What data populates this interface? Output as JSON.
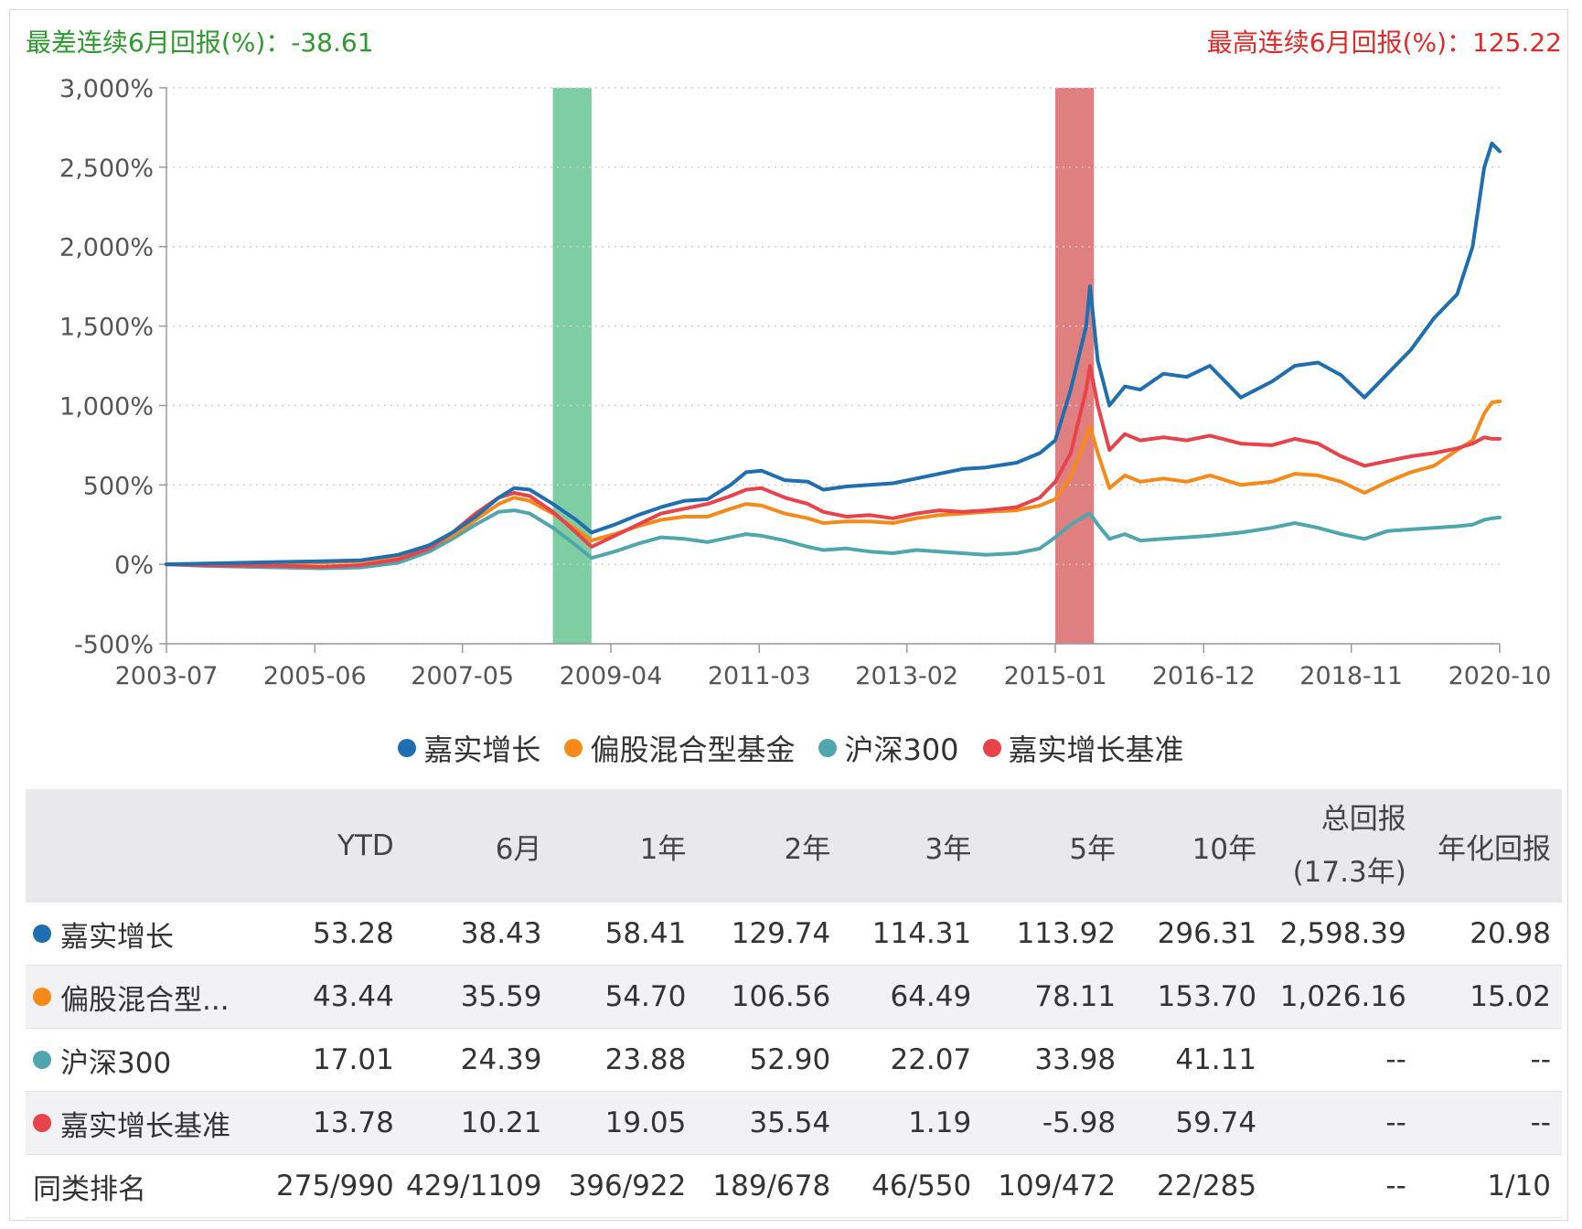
{
  "annotations": {
    "worst_6m": "最差连续6月回报(%)：-38.61",
    "best_6m": "最高连续6月回报(%)：125.22"
  },
  "colors": {
    "fund": "#1f6fb0",
    "peer": "#f58a18",
    "index": "#4fa6ad",
    "benchmark": "#e8434b",
    "worst_band": "#7fcda2",
    "best_band": "#df7f7f",
    "worst_text": "#2e9a2e",
    "best_text": "#e02a2a"
  },
  "chart_data": {
    "type": "line",
    "y_ticks": [
      "3,000%",
      "2,500%",
      "2,000%",
      "1,500%",
      "1,000%",
      "500%",
      "0%",
      "-500%"
    ],
    "y_tick_values": [
      3000,
      2500,
      2000,
      1500,
      1000,
      500,
      0,
      -500
    ],
    "ylim": [
      -500,
      3000
    ],
    "x_ticks": [
      "2003-07",
      "2005-06",
      "2007-05",
      "2009-04",
      "2011-03",
      "2013-02",
      "2015-01",
      "2016-12",
      "2018-11",
      "2020-10"
    ],
    "x_tick_values": [
      2003.5,
      2005.42,
      2007.33,
      2009.25,
      2011.17,
      2013.08,
      2015.0,
      2016.92,
      2018.83,
      2020.75
    ],
    "xlim": [
      2003.5,
      2020.75
    ],
    "grid": "dotted-horizontal",
    "legend_position": "bottom-center",
    "highlight_bands": [
      {
        "x0": 2008.5,
        "x1": 2009.0,
        "label": "worst"
      },
      {
        "x0": 2015.0,
        "x1": 2015.5,
        "label": "best"
      }
    ],
    "series": [
      {
        "name": "嘉实增长",
        "color_key": "fund",
        "points": [
          [
            2003.5,
            0
          ],
          [
            2004.0,
            5
          ],
          [
            2004.5,
            10
          ],
          [
            2005.0,
            15
          ],
          [
            2005.5,
            20
          ],
          [
            2006.0,
            25
          ],
          [
            2006.5,
            60
          ],
          [
            2006.9,
            120
          ],
          [
            2007.2,
            200
          ],
          [
            2007.5,
            300
          ],
          [
            2007.8,
            420
          ],
          [
            2008.0,
            480
          ],
          [
            2008.2,
            470
          ],
          [
            2008.5,
            380
          ],
          [
            2008.8,
            280
          ],
          [
            2009.0,
            200
          ],
          [
            2009.3,
            250
          ],
          [
            2009.6,
            310
          ],
          [
            2009.9,
            360
          ],
          [
            2010.2,
            400
          ],
          [
            2010.5,
            410
          ],
          [
            2010.8,
            500
          ],
          [
            2011.0,
            580
          ],
          [
            2011.2,
            590
          ],
          [
            2011.5,
            530
          ],
          [
            2011.8,
            520
          ],
          [
            2012.0,
            470
          ],
          [
            2012.3,
            490
          ],
          [
            2012.6,
            500
          ],
          [
            2012.9,
            510
          ],
          [
            2013.2,
            540
          ],
          [
            2013.5,
            570
          ],
          [
            2013.8,
            600
          ],
          [
            2014.1,
            610
          ],
          [
            2014.5,
            640
          ],
          [
            2014.8,
            700
          ],
          [
            2015.0,
            780
          ],
          [
            2015.2,
            1100
          ],
          [
            2015.4,
            1500
          ],
          [
            2015.45,
            1750
          ],
          [
            2015.55,
            1280
          ],
          [
            2015.7,
            1000
          ],
          [
            2015.9,
            1120
          ],
          [
            2016.1,
            1100
          ],
          [
            2016.4,
            1200
          ],
          [
            2016.7,
            1180
          ],
          [
            2017.0,
            1250
          ],
          [
            2017.4,
            1050
          ],
          [
            2017.8,
            1150
          ],
          [
            2018.1,
            1250
          ],
          [
            2018.4,
            1270
          ],
          [
            2018.7,
            1190
          ],
          [
            2019.0,
            1050
          ],
          [
            2019.3,
            1200
          ],
          [
            2019.6,
            1350
          ],
          [
            2019.9,
            1550
          ],
          [
            2020.2,
            1700
          ],
          [
            2020.4,
            2000
          ],
          [
            2020.55,
            2500
          ],
          [
            2020.65,
            2650
          ],
          [
            2020.75,
            2600
          ]
        ]
      },
      {
        "name": "偏股混合型基金",
        "color_key": "peer",
        "points": [
          [
            2003.5,
            0
          ],
          [
            2004.0,
            3
          ],
          [
            2004.5,
            6
          ],
          [
            2005.0,
            8
          ],
          [
            2005.5,
            12
          ],
          [
            2006.0,
            20
          ],
          [
            2006.5,
            50
          ],
          [
            2006.9,
            110
          ],
          [
            2007.2,
            180
          ],
          [
            2007.5,
            280
          ],
          [
            2007.8,
            380
          ],
          [
            2008.0,
            420
          ],
          [
            2008.2,
            400
          ],
          [
            2008.5,
            320
          ],
          [
            2008.8,
            220
          ],
          [
            2009.0,
            150
          ],
          [
            2009.3,
            190
          ],
          [
            2009.6,
            240
          ],
          [
            2009.9,
            280
          ],
          [
            2010.2,
            300
          ],
          [
            2010.5,
            300
          ],
          [
            2010.8,
            350
          ],
          [
            2011.0,
            380
          ],
          [
            2011.2,
            370
          ],
          [
            2011.5,
            320
          ],
          [
            2011.8,
            290
          ],
          [
            2012.0,
            260
          ],
          [
            2012.3,
            270
          ],
          [
            2012.6,
            270
          ],
          [
            2012.9,
            260
          ],
          [
            2013.2,
            290
          ],
          [
            2013.5,
            310
          ],
          [
            2013.8,
            320
          ],
          [
            2014.1,
            330
          ],
          [
            2014.5,
            340
          ],
          [
            2014.8,
            370
          ],
          [
            2015.0,
            410
          ],
          [
            2015.2,
            550
          ],
          [
            2015.4,
            800
          ],
          [
            2015.45,
            870
          ],
          [
            2015.55,
            700
          ],
          [
            2015.7,
            480
          ],
          [
            2015.9,
            560
          ],
          [
            2016.1,
            520
          ],
          [
            2016.4,
            540
          ],
          [
            2016.7,
            520
          ],
          [
            2017.0,
            560
          ],
          [
            2017.4,
            500
          ],
          [
            2017.8,
            520
          ],
          [
            2018.1,
            570
          ],
          [
            2018.4,
            560
          ],
          [
            2018.7,
            520
          ],
          [
            2019.0,
            450
          ],
          [
            2019.3,
            520
          ],
          [
            2019.6,
            580
          ],
          [
            2019.9,
            620
          ],
          [
            2020.2,
            720
          ],
          [
            2020.4,
            780
          ],
          [
            2020.55,
            950
          ],
          [
            2020.65,
            1020
          ],
          [
            2020.75,
            1026
          ]
        ]
      },
      {
        "name": "沪深300",
        "color_key": "index",
        "points": [
          [
            2003.5,
            0
          ],
          [
            2004.0,
            -10
          ],
          [
            2004.5,
            -15
          ],
          [
            2005.0,
            -20
          ],
          [
            2005.5,
            -25
          ],
          [
            2006.0,
            -20
          ],
          [
            2006.5,
            10
          ],
          [
            2006.9,
            80
          ],
          [
            2007.2,
            160
          ],
          [
            2007.5,
            250
          ],
          [
            2007.8,
            330
          ],
          [
            2008.0,
            340
          ],
          [
            2008.2,
            320
          ],
          [
            2008.5,
            230
          ],
          [
            2008.8,
            120
          ],
          [
            2009.0,
            40
          ],
          [
            2009.3,
            80
          ],
          [
            2009.6,
            130
          ],
          [
            2009.9,
            170
          ],
          [
            2010.2,
            160
          ],
          [
            2010.5,
            140
          ],
          [
            2010.8,
            170
          ],
          [
            2011.0,
            190
          ],
          [
            2011.2,
            180
          ],
          [
            2011.5,
            150
          ],
          [
            2011.8,
            110
          ],
          [
            2012.0,
            90
          ],
          [
            2012.3,
            100
          ],
          [
            2012.6,
            80
          ],
          [
            2012.9,
            70
          ],
          [
            2013.2,
            90
          ],
          [
            2013.5,
            80
          ],
          [
            2013.8,
            70
          ],
          [
            2014.1,
            60
          ],
          [
            2014.5,
            70
          ],
          [
            2014.8,
            100
          ],
          [
            2015.0,
            170
          ],
          [
            2015.2,
            250
          ],
          [
            2015.4,
            310
          ],
          [
            2015.45,
            320
          ],
          [
            2015.55,
            250
          ],
          [
            2015.7,
            160
          ],
          [
            2015.9,
            190
          ],
          [
            2016.1,
            150
          ],
          [
            2016.4,
            160
          ],
          [
            2016.7,
            170
          ],
          [
            2017.0,
            180
          ],
          [
            2017.4,
            200
          ],
          [
            2017.8,
            230
          ],
          [
            2018.1,
            260
          ],
          [
            2018.4,
            230
          ],
          [
            2018.7,
            190
          ],
          [
            2019.0,
            160
          ],
          [
            2019.3,
            210
          ],
          [
            2019.6,
            220
          ],
          [
            2019.9,
            230
          ],
          [
            2020.2,
            240
          ],
          [
            2020.4,
            250
          ],
          [
            2020.55,
            280
          ],
          [
            2020.65,
            290
          ],
          [
            2020.75,
            295
          ]
        ]
      },
      {
        "name": "嘉实增长基准",
        "color_key": "benchmark",
        "points": [
          [
            2003.5,
            0
          ],
          [
            2004.0,
            -5
          ],
          [
            2004.5,
            -8
          ],
          [
            2005.0,
            -10
          ],
          [
            2005.5,
            -15
          ],
          [
            2006.0,
            -5
          ],
          [
            2006.5,
            30
          ],
          [
            2006.9,
            100
          ],
          [
            2007.2,
            200
          ],
          [
            2007.5,
            320
          ],
          [
            2007.8,
            420
          ],
          [
            2008.0,
            450
          ],
          [
            2008.2,
            430
          ],
          [
            2008.5,
            330
          ],
          [
            2008.8,
            200
          ],
          [
            2009.0,
            110
          ],
          [
            2009.3,
            180
          ],
          [
            2009.6,
            250
          ],
          [
            2009.9,
            320
          ],
          [
            2010.2,
            350
          ],
          [
            2010.5,
            380
          ],
          [
            2010.8,
            430
          ],
          [
            2011.0,
            470
          ],
          [
            2011.2,
            480
          ],
          [
            2011.5,
            420
          ],
          [
            2011.8,
            380
          ],
          [
            2012.0,
            330
          ],
          [
            2012.3,
            300
          ],
          [
            2012.6,
            310
          ],
          [
            2012.9,
            290
          ],
          [
            2013.2,
            320
          ],
          [
            2013.5,
            340
          ],
          [
            2013.8,
            330
          ],
          [
            2014.1,
            340
          ],
          [
            2014.5,
            360
          ],
          [
            2014.8,
            420
          ],
          [
            2015.0,
            520
          ],
          [
            2015.2,
            700
          ],
          [
            2015.4,
            1100
          ],
          [
            2015.45,
            1250
          ],
          [
            2015.55,
            1000
          ],
          [
            2015.7,
            720
          ],
          [
            2015.9,
            820
          ],
          [
            2016.1,
            780
          ],
          [
            2016.4,
            800
          ],
          [
            2016.7,
            780
          ],
          [
            2017.0,
            810
          ],
          [
            2017.4,
            760
          ],
          [
            2017.8,
            750
          ],
          [
            2018.1,
            790
          ],
          [
            2018.4,
            760
          ],
          [
            2018.7,
            680
          ],
          [
            2019.0,
            620
          ],
          [
            2019.3,
            650
          ],
          [
            2019.6,
            680
          ],
          [
            2019.9,
            700
          ],
          [
            2020.2,
            730
          ],
          [
            2020.4,
            760
          ],
          [
            2020.55,
            800
          ],
          [
            2020.65,
            790
          ],
          [
            2020.75,
            790
          ]
        ]
      }
    ]
  },
  "legend": [
    {
      "label": "嘉实增长",
      "color_key": "fund"
    },
    {
      "label": "偏股混合型基金",
      "color_key": "peer"
    },
    {
      "label": "沪深300",
      "color_key": "index"
    },
    {
      "label": "嘉实增长基准",
      "color_key": "benchmark"
    }
  ],
  "table": {
    "headers": [
      "",
      "YTD",
      "6月",
      "1年",
      "2年",
      "3年",
      "5年",
      "10年",
      "总回报",
      "年化回报"
    ],
    "total_header_sub": "(17.3年)",
    "rows": [
      {
        "name": "嘉实增长",
        "color_key": "fund",
        "values": [
          "53.28",
          "38.43",
          "58.41",
          "129.74",
          "114.31",
          "113.92",
          "296.31",
          "2,598.39",
          "20.98"
        ]
      },
      {
        "name": "偏股混合型...",
        "color_key": "peer",
        "values": [
          "43.44",
          "35.59",
          "54.70",
          "106.56",
          "64.49",
          "78.11",
          "153.70",
          "1,026.16",
          "15.02"
        ]
      },
      {
        "name": "沪深300",
        "color_key": "index",
        "values": [
          "17.01",
          "24.39",
          "23.88",
          "52.90",
          "22.07",
          "33.98",
          "41.11",
          "--",
          "--"
        ]
      },
      {
        "name": "嘉实增长基准",
        "color_key": "benchmark",
        "values": [
          "13.78",
          "10.21",
          "19.05",
          "35.54",
          "1.19",
          "-5.98",
          "59.74",
          "--",
          "--"
        ]
      },
      {
        "name": "同类排名",
        "color_key": "",
        "values": [
          "275/990",
          "429/1109",
          "396/922",
          "189/678",
          "46/550",
          "109/472",
          "22/285",
          "--",
          "1/10"
        ]
      }
    ]
  }
}
